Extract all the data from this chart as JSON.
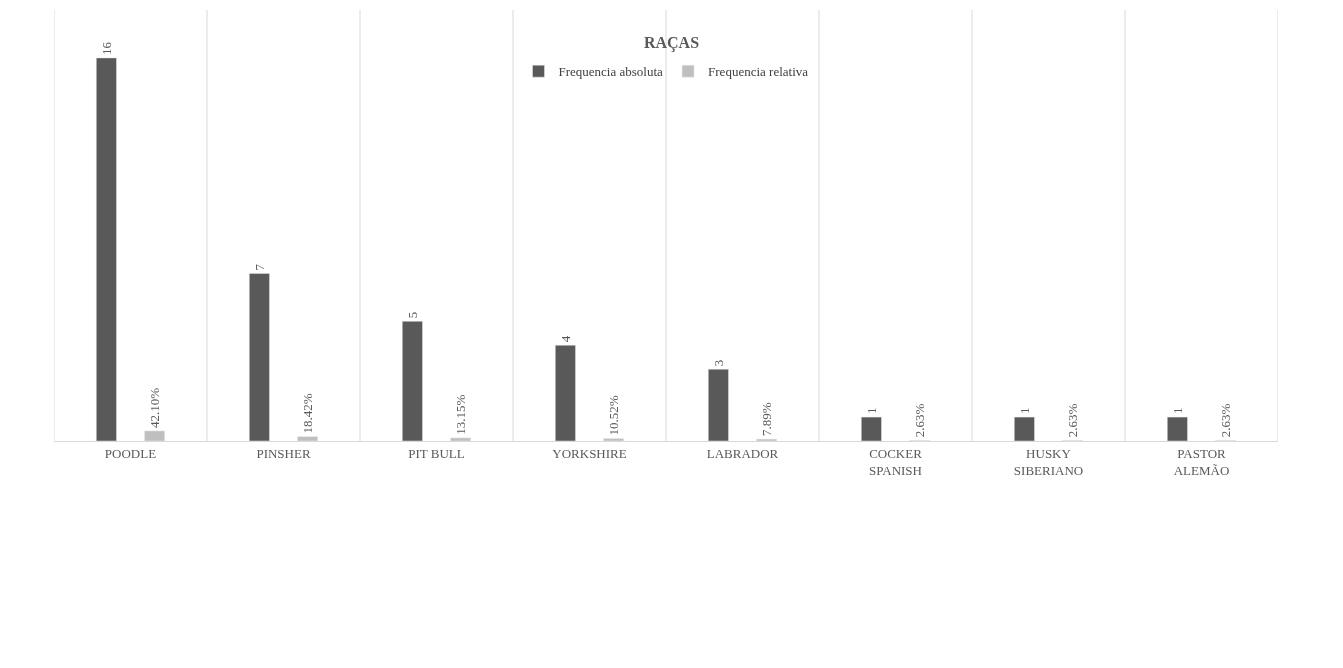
{
  "chart_data": {
    "type": "bar",
    "title": "RAÇAS",
    "categories": [
      "POODLE",
      "PINSHER",
      "PIT BULL",
      "YORKSHIRE",
      "LABRADOR",
      "COCKER SPANISH",
      "HUSKY SIBERIANO",
      "PASTOR ALEMÃO"
    ],
    "series": [
      {
        "name": "Frequencia absoluta",
        "color": "#595959",
        "values": [
          16,
          7,
          5,
          4,
          3,
          1,
          1,
          1
        ]
      },
      {
        "name": "Frequencia relativa",
        "color": "#bfbfbf",
        "values": [
          0.421,
          0.1842,
          0.1315,
          0.1052,
          0.0789,
          0.0263,
          0.0263,
          0.0263
        ],
        "value_labels": [
          "42.10%",
          "18.42%",
          "13.15%",
          "10.52%",
          "7.89%",
          "2.63%",
          "2.63%",
          "2.63%"
        ]
      }
    ],
    "data_labels": true,
    "ylim": [
      0,
      18
    ],
    "grid": "x",
    "legend": "top",
    "tick_labels": "x"
  }
}
